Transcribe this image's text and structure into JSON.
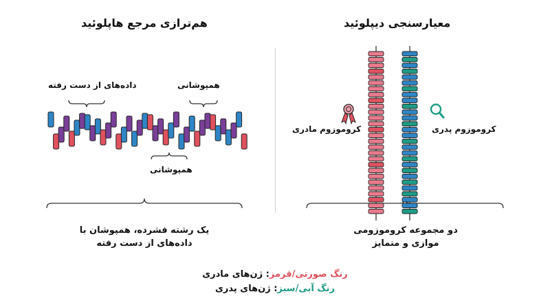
{
  "colors": {
    "red": "#E0515E",
    "pink": "#E87A8C",
    "blue": "#2F86C6",
    "purple": "#7A3F99",
    "teal": "#1E9C86",
    "brace": "#333333"
  },
  "left": {
    "title": "هم‌ترازی مرجع هاپلوئید",
    "label_missing": "داده‌های از دست رفته",
    "label_overlap_top": "همپوشانی",
    "label_overlap_bottom": "همپوشانی",
    "caption_line1": "یک رشته فشرده، همپوشان با",
    "caption_line2": "داده‌های از دست رفته"
  },
  "right": {
    "title": "معیارسنجی دیپلوئید",
    "maternal_label": "کروموزوم مادری",
    "paternal_label": "کروموزوم پدری",
    "caption_line1": "دو مجموعه کروموزومی",
    "caption_line2": "موازی و متمایز",
    "ribbon_icon": "ribbon-award-icon",
    "magnifier_icon": "magnifier-icon"
  },
  "legend": {
    "maternal_colors": "رنگ صورتی/قرمز",
    "maternal_text": ": ژن‌های مادری",
    "paternal_colors": "رنگ آبی/سبز",
    "paternal_text": ": ژن‌های پدری"
  }
}
